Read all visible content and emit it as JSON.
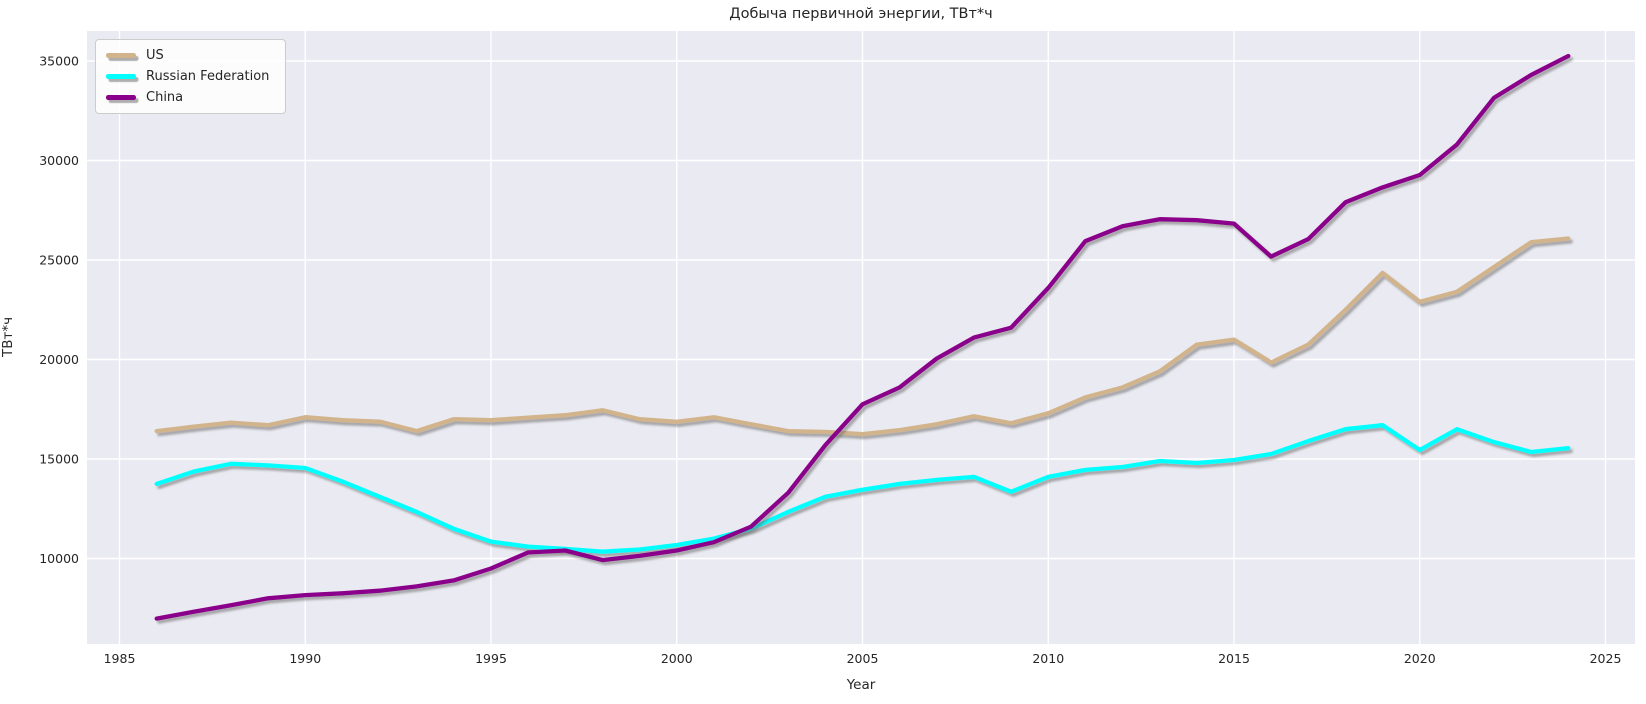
{
  "title": "Добыча первичной энергии, ТВт*ч",
  "axes": {
    "xlabel": "Year",
    "ylabel": "ТВт*ч",
    "x_ticks": [
      1985,
      1990,
      1995,
      2000,
      2005,
      2010,
      2015,
      2020,
      2025
    ],
    "y_ticks": [
      10000,
      15000,
      20000,
      25000,
      30000,
      35000
    ],
    "x_range": [
      1984.1,
      2025.8
    ],
    "y_range": [
      5700,
      36500
    ],
    "grid": true
  },
  "legend": {
    "position": "upper-left",
    "entries": [
      "US",
      "Russian Federation",
      "China"
    ]
  },
  "colors": {
    "plot_background": "#eaeaf2",
    "gridline": "#ffffff",
    "text": "#262626",
    "line_shadow": "#6e6e6e"
  },
  "chart_data": {
    "type": "line",
    "title": "Добыча первичной энергии, ТВт*ч",
    "xlabel": "Year",
    "ylabel": "ТВт*ч",
    "x": [
      1986,
      1987,
      1988,
      1989,
      1990,
      1991,
      1992,
      1993,
      1994,
      1995,
      1996,
      1997,
      1998,
      1999,
      2000,
      2001,
      2002,
      2003,
      2004,
      2005,
      2006,
      2007,
      2008,
      2009,
      2010,
      2011,
      2012,
      2013,
      2014,
      2015,
      2016,
      2017,
      2018,
      2019,
      2020,
      2021,
      2022,
      2023,
      2024
    ],
    "series": [
      {
        "name": "US",
        "color": "#d2b48c",
        "values": [
          16400,
          16630,
          16830,
          16700,
          17100,
          16950,
          16880,
          16400,
          17000,
          16950,
          17080,
          17200,
          17450,
          17000,
          16870,
          17100,
          16750,
          16400,
          16360,
          16250,
          16450,
          16750,
          17150,
          16800,
          17300,
          18100,
          18600,
          19400,
          20750,
          21000,
          19850,
          20750,
          22500,
          24350,
          22900,
          23400,
          24650,
          25900,
          26080
        ]
      },
      {
        "name": "Russian Federation",
        "color": "#00ffff",
        "values": [
          13750,
          14370,
          14760,
          14680,
          14550,
          13870,
          13100,
          12340,
          11490,
          10850,
          10600,
          10480,
          10340,
          10450,
          10680,
          11000,
          11500,
          12340,
          13100,
          13450,
          13750,
          13950,
          14100,
          13350,
          14100,
          14450,
          14600,
          14900,
          14800,
          14950,
          15250,
          15900,
          16500,
          16700,
          15450,
          16500,
          15850,
          15350,
          15550
        ]
      },
      {
        "name": "China",
        "color": "#8b008b",
        "values": [
          6980,
          7320,
          7650,
          8000,
          8160,
          8250,
          8380,
          8600,
          8900,
          9500,
          10300,
          10400,
          9920,
          10130,
          10400,
          10820,
          11600,
          13300,
          15700,
          17750,
          18600,
          20050,
          21100,
          21600,
          23600,
          25950,
          26700,
          27050,
          27000,
          26830,
          25170,
          26050,
          27900,
          28650,
          29270,
          30800,
          33150,
          34300,
          35250
        ]
      }
    ]
  }
}
